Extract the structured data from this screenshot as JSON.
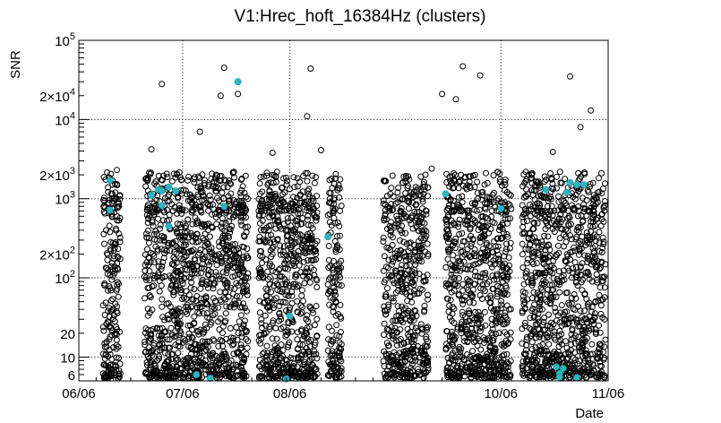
{
  "chart_data": {
    "type": "scatter",
    "title": "V1:Hrec_hoft_16384Hz (clusters)",
    "xlabel": "Date",
    "ylabel": "SNR",
    "yscale": "log",
    "ylim": [
      5,
      100000
    ],
    "xlim": [
      "2024-06-06",
      "2024-11-06"
    ],
    "grid": true,
    "x_ticks": [
      {
        "date": "2024-06-06",
        "label": "06/06"
      },
      {
        "date": "2024-07-06",
        "label": "07/06"
      },
      {
        "date": "2024-08-06",
        "label": "08/06"
      },
      {
        "date": "2024-10-06",
        "label": "10/06"
      },
      {
        "date": "2024-11-06",
        "label": "11/06"
      }
    ],
    "y_ticks": [
      {
        "value": 6,
        "label": "6"
      },
      {
        "value": 10,
        "label": "10"
      },
      {
        "value": 20,
        "label": "20"
      },
      {
        "value": 100,
        "label": "10",
        "exp": "2"
      },
      {
        "value": 200,
        "label": "2×10",
        "exp": "2"
      },
      {
        "value": 1000,
        "label": "10",
        "exp": "3"
      },
      {
        "value": 2000,
        "label": "2×10",
        "exp": "3"
      },
      {
        "value": 10000,
        "label": "10",
        "exp": "4"
      },
      {
        "value": 20000,
        "label": "2×10",
        "exp": "4"
      },
      {
        "value": 100000,
        "label": "10",
        "exp": "5"
      }
    ],
    "data_segments": [
      {
        "start": "2024-06-06",
        "end": "2024-06-06"
      },
      {
        "start": "2024-06-13",
        "end": "2024-06-18"
      },
      {
        "start": "2024-06-25",
        "end": "2024-07-25"
      },
      {
        "start": "2024-07-28",
        "end": "2024-08-14"
      },
      {
        "start": "2024-08-17",
        "end": "2024-08-21"
      },
      {
        "start": "2024-09-02",
        "end": "2024-09-15"
      },
      {
        "start": "2024-09-20",
        "end": "2024-10-09"
      },
      {
        "start": "2024-10-12",
        "end": "2024-11-06"
      }
    ],
    "series": [
      {
        "style": "open",
        "color": "#000000",
        "points": [
          {
            "x": "2024-06-30",
            "y": 28000
          },
          {
            "x": "2024-07-18",
            "y": 45000
          },
          {
            "x": "2024-07-17",
            "y": 20000
          },
          {
            "x": "2024-07-22",
            "y": 21000
          },
          {
            "x": "2024-08-12",
            "y": 44000
          },
          {
            "x": "2024-08-11",
            "y": 11000
          },
          {
            "x": "2024-09-25",
            "y": 47000
          },
          {
            "x": "2024-09-23",
            "y": 18000
          },
          {
            "x": "2024-09-19",
            "y": 21000
          },
          {
            "x": "2024-09-30",
            "y": 36000
          },
          {
            "x": "2024-10-26",
            "y": 35000
          },
          {
            "x": "2024-11-01",
            "y": 13000
          },
          {
            "x": "2024-07-11",
            "y": 7000
          },
          {
            "x": "2024-06-27",
            "y": 4200
          },
          {
            "x": "2024-10-21",
            "y": 3900
          },
          {
            "x": "2024-08-01",
            "y": 3800
          },
          {
            "x": "2024-08-15",
            "y": 4100
          },
          {
            "x": "2024-06-17",
            "y": 2300
          },
          {
            "x": "2024-09-16",
            "y": 2400
          },
          {
            "x": "2024-10-29",
            "y": 8000
          }
        ]
      },
      {
        "style": "filled",
        "color": "#2ab7c0",
        "points": [
          {
            "x": "2024-06-15",
            "y": 1700
          },
          {
            "x": "2024-06-15",
            "y": 720
          },
          {
            "x": "2024-06-27",
            "y": 1100
          },
          {
            "x": "2024-06-29",
            "y": 1300
          },
          {
            "x": "2024-06-30",
            "y": 1250
          },
          {
            "x": "2024-07-02",
            "y": 1400
          },
          {
            "x": "2024-07-04",
            "y": 1250
          },
          {
            "x": "2024-06-30",
            "y": 820
          },
          {
            "x": "2024-07-02",
            "y": 450
          },
          {
            "x": "2024-07-18",
            "y": 800
          },
          {
            "x": "2024-07-22",
            "y": 30000
          },
          {
            "x": "2024-08-06",
            "y": 33
          },
          {
            "x": "2024-08-17",
            "y": 330
          },
          {
            "x": "2024-09-20",
            "y": 1150
          },
          {
            "x": "2024-10-06",
            "y": 750
          },
          {
            "x": "2024-10-22",
            "y": 7.5
          },
          {
            "x": "2024-10-23",
            "y": 6.2
          },
          {
            "x": "2024-10-24",
            "y": 7.2
          },
          {
            "x": "2024-10-25",
            "y": 1200
          },
          {
            "x": "2024-10-26",
            "y": 1600
          },
          {
            "x": "2024-10-28",
            "y": 1500
          },
          {
            "x": "2024-07-10",
            "y": 6
          },
          {
            "x": "2024-07-14",
            "y": 5.4
          },
          {
            "x": "2024-08-05",
            "y": 5.3
          },
          {
            "x": "2024-10-19",
            "y": 1300
          },
          {
            "x": "2024-10-30",
            "y": 1500
          },
          {
            "x": "2024-10-23",
            "y": 5.6
          },
          {
            "x": "2024-10-28",
            "y": 5.5
          }
        ]
      }
    ]
  }
}
